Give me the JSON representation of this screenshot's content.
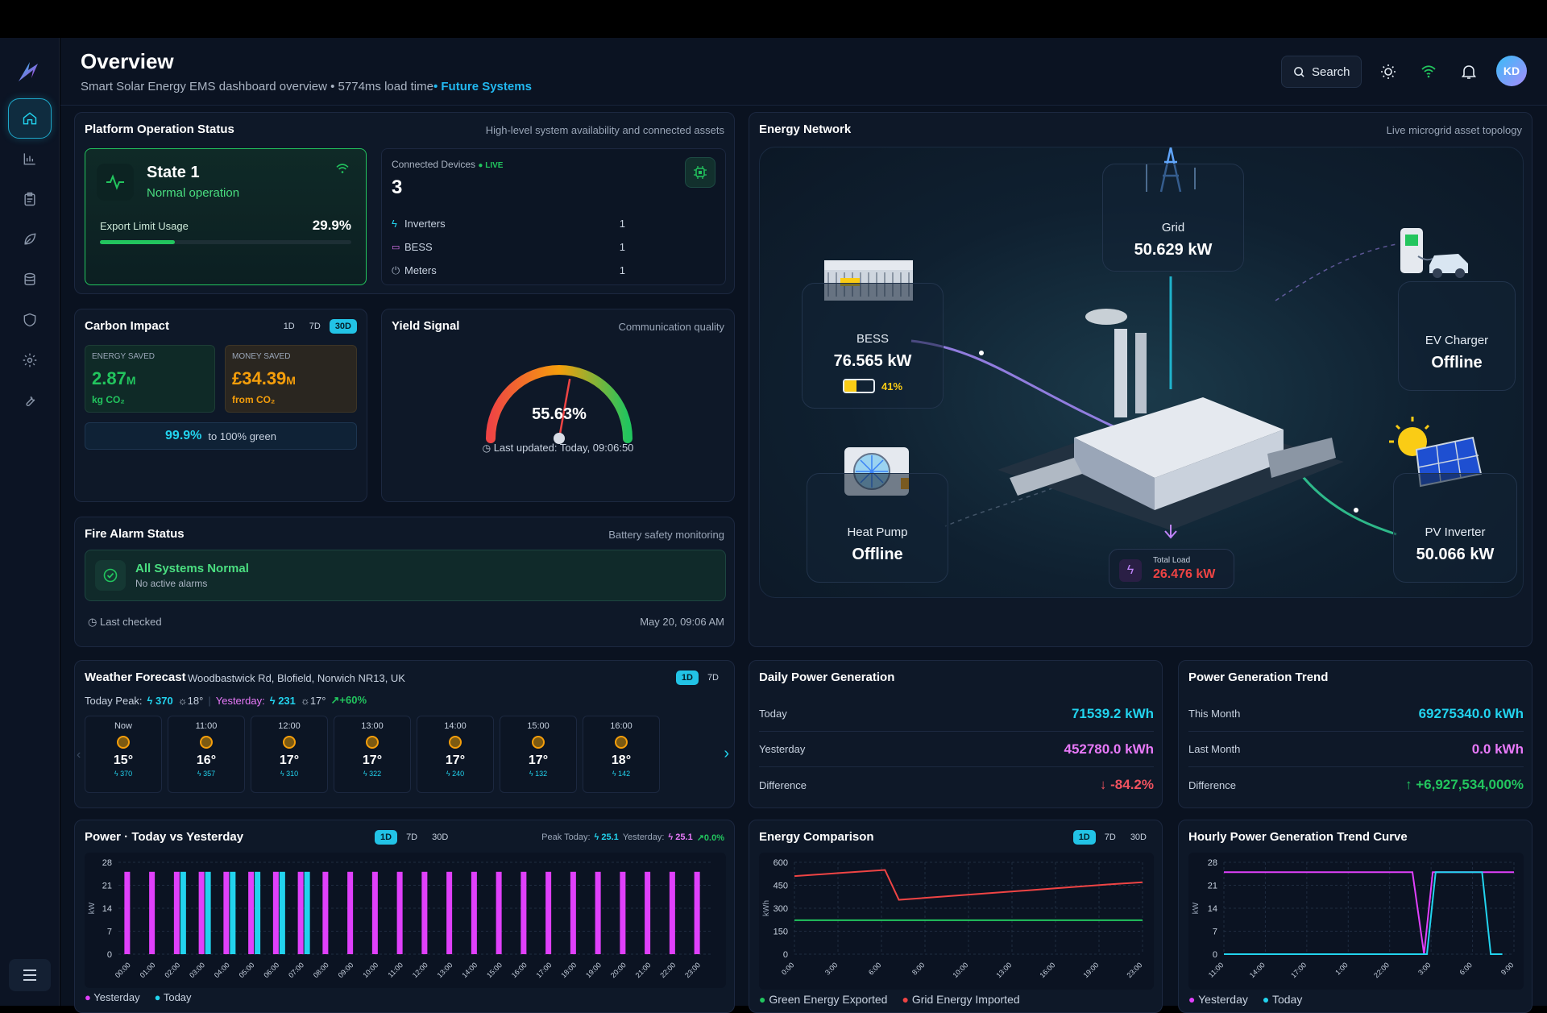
{
  "header": {
    "title": "Overview",
    "subtitle": "Smart Solar Energy EMS dashboard overview • 5774ms load time",
    "subtitle_accent": "• Future Systems",
    "search_label": "Search",
    "avatar_initials": "KD"
  },
  "sidebar": {
    "items": [
      "home-icon",
      "chart-icon",
      "clipboard-icon",
      "leaf-icon",
      "database-icon",
      "shield-icon",
      "gear-icon",
      "wrench-icon"
    ]
  },
  "platform": {
    "title": "Platform Operation Status",
    "subtitle": "High-level system availability and connected assets",
    "state_title": "State 1",
    "state_desc": "Normal operation",
    "export_label": "Export Limit Usage",
    "export_value": "29.9%",
    "export_fraction": 0.299,
    "devices_label": "Connected Devices",
    "live_label": "LIVE",
    "devices_count": "3",
    "devices": [
      {
        "name": "Inverters",
        "count": "1"
      },
      {
        "name": "BESS",
        "count": "1"
      },
      {
        "name": "Meters",
        "count": "1"
      }
    ]
  },
  "carbon": {
    "title": "Carbon Impact",
    "ranges": [
      "1D",
      "7D",
      "30D"
    ],
    "active_range": "30D",
    "energy_label": "ENERGY SAVED",
    "energy_value": "2.87",
    "energy_unit": "M",
    "energy_sub": "kg CO₂",
    "money_label": "MONEY SAVED",
    "money_value": "£34.39",
    "money_unit": "M",
    "money_sub": "from CO₂",
    "green_value": "99.9%",
    "green_label": "to 100% green"
  },
  "yield": {
    "title": "Yield Signal",
    "subtitle": "Communication quality",
    "value": "55.63%",
    "fraction": 0.5563,
    "updated": "Last updated: Today, 09:06:50"
  },
  "fire": {
    "title": "Fire Alarm Status",
    "subtitle": "Battery safety monitoring",
    "status": "All Systems Normal",
    "status_sub": "No active alarms",
    "checked_label": "Last checked",
    "checked_time": "May 20, 09:06 AM"
  },
  "network": {
    "title": "Energy Network",
    "subtitle": "Live microgrid asset topology",
    "grid": {
      "name": "Grid",
      "value": "50.629 kW"
    },
    "bess": {
      "name": "BESS",
      "value": "76.565 kW",
      "soc": "41%",
      "soc_fraction": 0.41
    },
    "ev": {
      "name": "EV Charger",
      "value": "Offline"
    },
    "heat": {
      "name": "Heat Pump",
      "value": "Offline"
    },
    "pv": {
      "name": "PV Inverter",
      "value": "50.066 kW"
    },
    "load": {
      "label": "Total Load",
      "value": "26.476 kW"
    }
  },
  "weather": {
    "title": "Weather Forecast",
    "location": "Woodbastwick Rd, Blofield, Norwich NR13, UK",
    "ranges": [
      "1D",
      "7D"
    ],
    "active_range": "1D",
    "peak_label": "Today Peak:",
    "peak_power": "370",
    "peak_temp": "18°",
    "yesterday_label": "Yesterday:",
    "yesterday_power": "231",
    "yesterday_temp": "17°",
    "change": "+60%",
    "hours": [
      {
        "time": "Now",
        "temp": "15°",
        "power": "370"
      },
      {
        "time": "11:00",
        "temp": "16°",
        "power": "357"
      },
      {
        "time": "12:00",
        "temp": "17°",
        "power": "310"
      },
      {
        "time": "13:00",
        "temp": "17°",
        "power": "322"
      },
      {
        "time": "14:00",
        "temp": "17°",
        "power": "240"
      },
      {
        "time": "15:00",
        "temp": "17°",
        "power": "132"
      },
      {
        "time": "16:00",
        "temp": "18°",
        "power": "142"
      }
    ]
  },
  "daily": {
    "title": "Daily Power Generation",
    "rows": [
      {
        "label": "Today",
        "value": "71539.2 kWh",
        "color": "#22d3ee"
      },
      {
        "label": "Yesterday",
        "value": "452780.0 kWh",
        "color": "#e879f9"
      },
      {
        "label": "Difference",
        "value": "↓ -84.2%",
        "color": "#f0525f"
      }
    ]
  },
  "trend": {
    "title": "Power Generation Trend",
    "rows": [
      {
        "label": "This Month",
        "value": "69275340.0 kWh",
        "color": "#22d3ee"
      },
      {
        "label": "Last Month",
        "value": "0.0 kWh",
        "color": "#e879f9"
      },
      {
        "label": "Difference",
        "value": "↑ +6,927,534,000%",
        "color": "#22c55e"
      }
    ]
  },
  "power_chart_meta": {
    "title": "Power · Today vs Yesterday",
    "ranges": [
      "1D",
      "7D",
      "30D"
    ],
    "active_range": "1D",
    "peak_today_label": "Peak Today:",
    "peak_today": "25.1",
    "yesterday_label": "Yesterday:",
    "yesterday": "25.1",
    "change": "0.0%",
    "legend": [
      "Yesterday",
      "Today"
    ],
    "ylabel": "kW"
  },
  "energy_chart_meta": {
    "title": "Energy Comparison",
    "ranges": [
      "1D",
      "7D",
      "30D"
    ],
    "active_range": "1D",
    "legend": [
      "Green Energy Exported",
      "Grid Energy Imported"
    ],
    "ylabel": "kWh"
  },
  "hourly_chart_meta": {
    "title": "Hourly Power Generation Trend Curve",
    "legend": [
      "Yesterday",
      "Today"
    ],
    "ylabel": "kW"
  },
  "chart_data": [
    {
      "type": "bar",
      "title": "Power · Today vs Yesterday",
      "ylabel": "kW",
      "ylim": [
        0,
        28
      ],
      "yticks": [
        0,
        7,
        14,
        21,
        28
      ],
      "categories": [
        "00:00",
        "01:00",
        "02:00",
        "03:00",
        "04:00",
        "05:00",
        "06:00",
        "07:00",
        "08:00",
        "09:00",
        "10:00",
        "11:00",
        "12:00",
        "13:00",
        "14:00",
        "15:00",
        "16:00",
        "17:00",
        "18:00",
        "19:00",
        "20:00",
        "21:00",
        "22:00",
        "23:00"
      ],
      "series": [
        {
          "name": "Yesterday",
          "color": "#e040fb",
          "values": [
            25.1,
            25.1,
            25.1,
            25.1,
            25.1,
            25.1,
            25.1,
            25.1,
            25.1,
            25.1,
            25.1,
            25.1,
            25.1,
            25.1,
            25.1,
            25.1,
            25.1,
            25.1,
            25.1,
            25.1,
            25.1,
            25.1,
            25.1,
            25.1
          ]
        },
        {
          "name": "Today",
          "color": "#22d3ee",
          "values": [
            0,
            0,
            25.1,
            25.1,
            25.1,
            25.1,
            25.1,
            25.1,
            0,
            0,
            0,
            0,
            0,
            0,
            0,
            0,
            0,
            0,
            0,
            0,
            0,
            0,
            0,
            0
          ]
        }
      ]
    },
    {
      "type": "line",
      "title": "Energy Comparison",
      "ylabel": "kWh",
      "ylim": [
        0,
        600
      ],
      "yticks": [
        0,
        150,
        300,
        450,
        600
      ],
      "x": [
        "0:00",
        "3:00",
        "6:00",
        "8:00",
        "10:00",
        "13:00",
        "16:00",
        "19:00",
        "23:00"
      ],
      "series": [
        {
          "name": "Grid Energy Imported",
          "color": "#ef4444",
          "points": [
            [
              0,
              510
            ],
            [
              0.13,
              530
            ],
            [
              0.26,
              550
            ],
            [
              0.3,
              355
            ],
            [
              0.45,
              380
            ],
            [
              0.6,
              405
            ],
            [
              0.75,
              430
            ],
            [
              0.9,
              455
            ],
            [
              1,
              470
            ]
          ]
        },
        {
          "name": "Green Energy Exported",
          "color": "#22c55e",
          "points": [
            [
              0,
              222
            ],
            [
              1,
              222
            ]
          ]
        }
      ]
    },
    {
      "type": "line",
      "title": "Hourly Power Generation Trend Curve",
      "ylabel": "kW",
      "ylim": [
        0,
        28
      ],
      "yticks": [
        0,
        7,
        14,
        21,
        28
      ],
      "x": [
        "11:00",
        "14:00",
        "17:00",
        "1:00",
        "22:00",
        "3:00",
        "6:00",
        "9:00"
      ],
      "series": [
        {
          "name": "Yesterday",
          "color": "#e040fb",
          "points": [
            [
              0,
              25
            ],
            [
              0.65,
              25
            ],
            [
              0.69,
              0
            ],
            [
              0.72,
              25
            ],
            [
              1,
              25
            ]
          ]
        },
        {
          "name": "Today",
          "color": "#22d3ee",
          "points": [
            [
              0,
              0
            ],
            [
              0.7,
              0
            ],
            [
              0.73,
              25
            ],
            [
              0.89,
              25
            ],
            [
              0.92,
              0
            ],
            [
              0.96,
              0
            ]
          ]
        }
      ]
    }
  ]
}
